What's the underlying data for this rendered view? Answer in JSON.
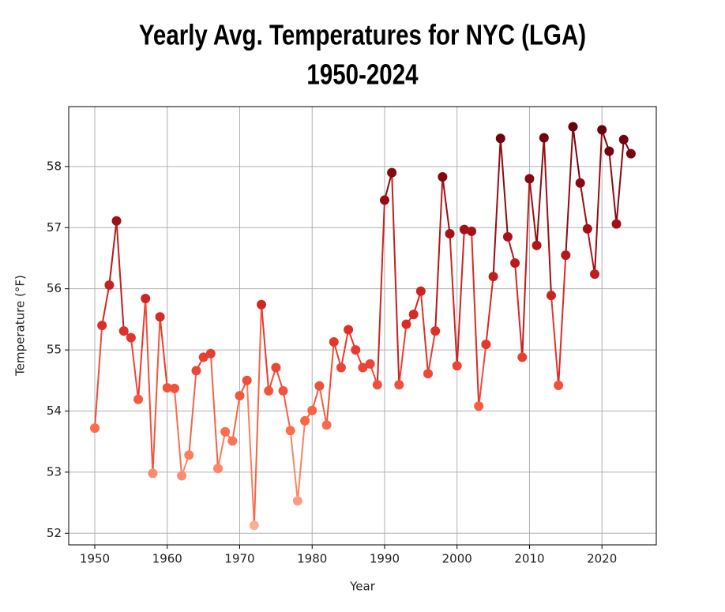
{
  "chart_data": {
    "type": "line",
    "title": "Yearly Avg. Temperatures for NYC (LGA)",
    "subtitle": "1950-2024",
    "x_label": "Year",
    "y_label": "Temperature (°F)",
    "x": [
      1950,
      1951,
      1952,
      1953,
      1954,
      1955,
      1956,
      1957,
      1958,
      1959,
      1960,
      1961,
      1962,
      1963,
      1964,
      1965,
      1966,
      1967,
      1968,
      1969,
      1970,
      1971,
      1972,
      1973,
      1974,
      1975,
      1976,
      1977,
      1978,
      1979,
      1980,
      1981,
      1982,
      1983,
      1984,
      1985,
      1986,
      1987,
      1988,
      1989,
      1990,
      1991,
      1992,
      1993,
      1994,
      1995,
      1996,
      1997,
      1998,
      1999,
      2000,
      2001,
      2002,
      2003,
      2004,
      2005,
      2006,
      2007,
      2008,
      2009,
      2010,
      2011,
      2012,
      2013,
      2014,
      2015,
      2016,
      2017,
      2018,
      2019,
      2020,
      2021,
      2022,
      2023,
      2024
    ],
    "values": [
      53.72,
      55.4,
      56.06,
      57.11,
      55.31,
      55.2,
      54.19,
      55.84,
      52.98,
      55.54,
      54.38,
      54.37,
      52.94,
      53.28,
      54.66,
      54.88,
      54.94,
      53.06,
      53.66,
      53.51,
      54.25,
      54.5,
      52.13,
      55.74,
      54.33,
      54.71,
      54.33,
      53.68,
      52.53,
      53.84,
      54.01,
      54.41,
      53.77,
      55.13,
      54.71,
      55.33,
      55.0,
      54.71,
      54.77,
      54.43,
      57.45,
      57.9,
      54.43,
      55.42,
      55.58,
      55.96,
      54.61,
      55.31,
      57.83,
      56.9,
      54.74,
      56.97,
      56.94,
      54.08,
      55.09,
      56.2,
      58.46,
      56.85,
      56.42,
      54.88,
      57.8,
      56.71,
      58.47,
      55.89,
      54.42,
      56.55,
      58.65,
      57.73,
      56.98,
      56.24,
      58.6,
      58.25,
      57.06,
      58.44,
      58.21
    ],
    "color_scale": [
      "#fcae91",
      "#fb6a4a",
      "#de2d26",
      "#a50f15",
      "#67000d"
    ],
    "xlim": [
      1946.4,
      2027.5
    ],
    "xticks": [
      1950,
      1960,
      1970,
      1980,
      1990,
      2000,
      2010,
      2020
    ],
    "ylim": [
      51.81,
      58.98
    ],
    "yticks": [
      52,
      53,
      54,
      55,
      56,
      57,
      58
    ],
    "grid": true
  }
}
